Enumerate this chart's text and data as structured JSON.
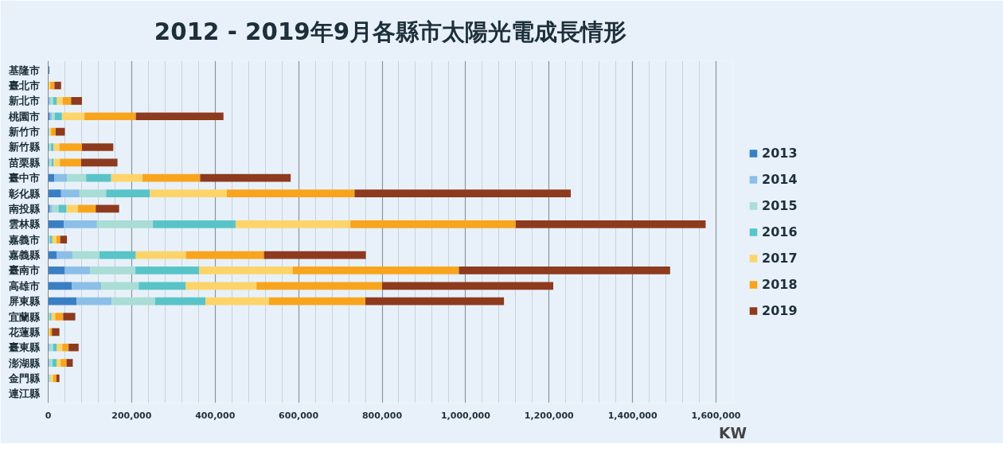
{
  "chart_data": {
    "type": "bar",
    "orientation": "horizontal",
    "stacked": true,
    "title": "2012 - 2019年9月各縣市太陽光電成長情形",
    "xlabel": "KW",
    "categories": [
      "基隆市",
      "臺北市",
      "新北市",
      "桃園市",
      "新竹市",
      "新竹縣",
      "苗栗縣",
      "臺中市",
      "彰化縣",
      "南投縣",
      "雲林縣",
      "嘉義市",
      "嘉義縣",
      "臺南市",
      "高雄市",
      "屏東縣",
      "宜蘭縣",
      "花蓮縣",
      "臺東縣",
      "澎湖縣",
      "金門縣",
      "連江縣"
    ],
    "series": [
      {
        "name": "2013",
        "color": "#3a7fc4",
        "values": [
          3000,
          0,
          1000,
          4000,
          0,
          0,
          0,
          15000,
          31000,
          4000,
          38000,
          0,
          21000,
          40000,
          57000,
          68000,
          0,
          0,
          0,
          0,
          0,
          0
        ]
      },
      {
        "name": "2014",
        "color": "#8bbfe8",
        "values": [
          0,
          0,
          4000,
          5000,
          0,
          3000,
          4000,
          30000,
          44000,
          6000,
          79000,
          0,
          37000,
          61000,
          70000,
          84000,
          0,
          0,
          3000,
          4000,
          0,
          0
        ]
      },
      {
        "name": "2015",
        "color": "#a9ddd6",
        "values": [
          0,
          0,
          7000,
          7000,
          4000,
          4000,
          4000,
          46000,
          64000,
          15000,
          134000,
          4000,
          65000,
          108000,
          90000,
          104000,
          4000,
          0,
          9000,
          6000,
          6000,
          0
        ]
      },
      {
        "name": "2016",
        "color": "#58c4c8",
        "values": [
          0,
          0,
          9000,
          17000,
          0,
          6000,
          5000,
          60000,
          105000,
          19000,
          198000,
          6000,
          87000,
          153000,
          113000,
          121000,
          4000,
          0,
          9000,
          10000,
          0,
          0
        ]
      },
      {
        "name": "2017",
        "color": "#fdd46a",
        "values": [
          0,
          5000,
          14000,
          54000,
          3000,
          14000,
          15000,
          75000,
          184000,
          27000,
          275000,
          10000,
          120000,
          224000,
          169000,
          152000,
          9000,
          4000,
          13000,
          10000,
          6000,
          0
        ]
      },
      {
        "name": "2018",
        "color": "#f8a51d",
        "values": [
          0,
          10000,
          20000,
          123000,
          11000,
          54000,
          51000,
          138000,
          306000,
          43000,
          396000,
          9000,
          187000,
          398000,
          301000,
          231000,
          19000,
          5000,
          15000,
          14000,
          8000,
          0
        ]
      },
      {
        "name": "2019",
        "color": "#8e3a1e",
        "values": [
          0,
          16000,
          26000,
          210000,
          22000,
          75000,
          87000,
          217000,
          518000,
          56000,
          455000,
          16000,
          244000,
          506000,
          410000,
          332000,
          29000,
          18000,
          24000,
          15000,
          7000,
          0
        ]
      }
    ],
    "xlim": [
      0,
      1640000
    ],
    "xticks": [
      0,
      {
        "value": 40000,
        "label": null
      },
      {
        "value": 80000,
        "label": null
      },
      {
        "value": 120000,
        "label": null
      },
      {
        "value": 160000,
        "label": null
      },
      {
        "value": 200000,
        "label": "200,000"
      },
      {
        "value": 240000,
        "label": null
      },
      {
        "value": 280000,
        "label": null
      },
      {
        "value": 320000,
        "label": null
      },
      {
        "value": 360000,
        "label": null
      },
      {
        "value": 400000,
        "label": "400,000"
      },
      {
        "value": 440000,
        "label": null
      },
      {
        "value": 480000,
        "label": null
      },
      {
        "value": 520000,
        "label": null
      },
      {
        "value": 560000,
        "label": null
      },
      {
        "value": 600000,
        "label": "600,000"
      },
      {
        "value": 640000,
        "label": null
      },
      {
        "value": 680000,
        "label": null
      },
      {
        "value": 720000,
        "label": null
      },
      {
        "value": 760000,
        "label": null
      },
      {
        "value": 800000,
        "label": "800,000"
      },
      {
        "value": 840000,
        "label": null
      },
      {
        "value": 880000,
        "label": null
      },
      {
        "value": 920000,
        "label": null
      },
      {
        "value": 960000,
        "label": null
      },
      {
        "value": 1000000,
        "label": "1,000,000"
      },
      {
        "value": 1040000,
        "label": null
      },
      {
        "value": 1080000,
        "label": null
      },
      {
        "value": 1120000,
        "label": null
      },
      {
        "value": 1160000,
        "label": null
      },
      {
        "value": 1200000,
        "label": "1,200,000"
      },
      {
        "value": 1240000,
        "label": null
      },
      {
        "value": 1280000,
        "label": null
      },
      {
        "value": 1320000,
        "label": null
      },
      {
        "value": 1360000,
        "label": null
      },
      {
        "value": 1400000,
        "label": "1,400,000"
      },
      {
        "value": 1440000,
        "label": null
      },
      {
        "value": 1480000,
        "label": null
      },
      {
        "value": 1520000,
        "label": null
      },
      {
        "value": 1560000,
        "label": null
      },
      {
        "value": 1600000,
        "label": "1,600,000"
      }
    ],
    "grid": "x",
    "legend": "right"
  }
}
